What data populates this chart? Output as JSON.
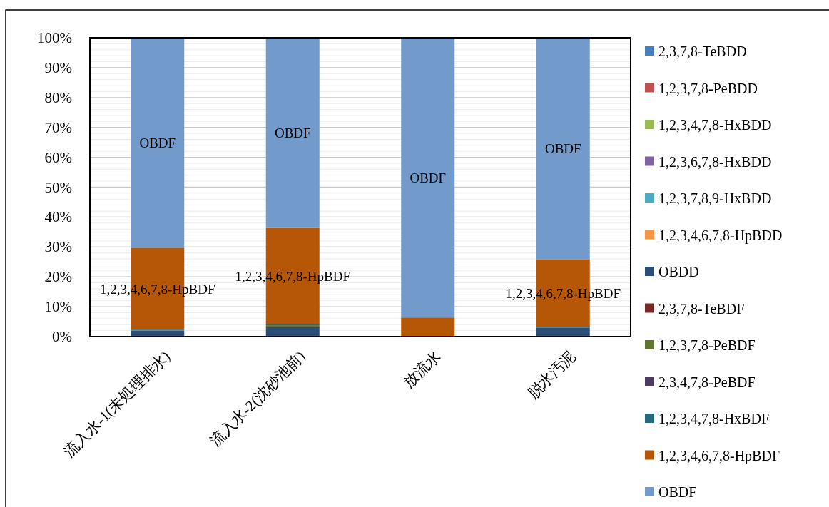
{
  "chart_data": {
    "type": "bar",
    "stacked": true,
    "categories": [
      "流入水-1(未処理排水)",
      "流入水-2(沈砂池前)",
      "放流水",
      "脱水汚泥"
    ],
    "ylim": [
      0,
      100
    ],
    "yticks": [
      {
        "value": 0,
        "label": "0%"
      },
      {
        "value": 10,
        "label": "10%"
      },
      {
        "value": 20,
        "label": "20%"
      },
      {
        "value": 30,
        "label": "30%"
      },
      {
        "value": 40,
        "label": "40%"
      },
      {
        "value": 50,
        "label": "50%"
      },
      {
        "value": 60,
        "label": "60%"
      },
      {
        "value": 70,
        "label": "70%"
      },
      {
        "value": 80,
        "label": "80%"
      },
      {
        "value": 90,
        "label": "90%"
      },
      {
        "value": 100,
        "label": "100%"
      }
    ],
    "grid": "y",
    "legend": "right",
    "series": [
      {
        "name": "2,3,7,8-TeBDD",
        "color": "#4a7ebb",
        "values": [
          0,
          0,
          0,
          0
        ]
      },
      {
        "name": "1,2,3,7,8-PeBDD",
        "color": "#c0504d",
        "values": [
          0,
          0,
          0,
          0
        ]
      },
      {
        "name": "1,2,3,4,7,8-HxBDD",
        "color": "#9bbb59",
        "values": [
          0,
          0,
          0,
          0
        ]
      },
      {
        "name": "1,2,3,6,7,8-HxBDD",
        "color": "#8064a2",
        "values": [
          0,
          0,
          0,
          0
        ]
      },
      {
        "name": "1,2,3,7,8,9-HxBDD",
        "color": "#4bacc6",
        "values": [
          0,
          0,
          0,
          0
        ]
      },
      {
        "name": "1,2,3,4,6,7,8-HpBDD",
        "color": "#f79646",
        "values": [
          0,
          0,
          0,
          0
        ]
      },
      {
        "name": "OBDD",
        "color": "#2c4d75",
        "values": [
          2.0,
          3.2,
          0,
          3.0
        ]
      },
      {
        "name": "2,3,7,8-TeBDF",
        "color": "#772c2a",
        "values": [
          0,
          0,
          0,
          0
        ]
      },
      {
        "name": "1,2,3,7,8-PeBDF",
        "color": "#5f7530",
        "values": [
          0.2,
          0.6,
          0,
          0
        ]
      },
      {
        "name": "2,3,4,7,8-PeBDF",
        "color": "#4d3b62",
        "values": [
          0,
          0,
          0,
          0
        ]
      },
      {
        "name": "1,2,3,4,7,8-HxBDF",
        "color": "#276a7c",
        "values": [
          0.3,
          0.4,
          0,
          0.3
        ]
      },
      {
        "name": "1,2,3,4,6,7,8-HpBDF",
        "color": "#b65708",
        "values": [
          27.1,
          32.2,
          6.4,
          22.5
        ],
        "value_labels": [
          "1,2,3,4,6,7,8-HpBDF",
          "1,2,3,4,6,7,8-HpBDF",
          null,
          "1,2,3,4,6,7,8-HpBDF"
        ]
      },
      {
        "name": "OBDF",
        "color": "#729aca",
        "values": [
          70.4,
          63.6,
          93.6,
          74.2
        ],
        "value_labels": [
          "OBDF",
          "OBDF",
          "OBDF",
          "OBDF"
        ]
      }
    ]
  }
}
